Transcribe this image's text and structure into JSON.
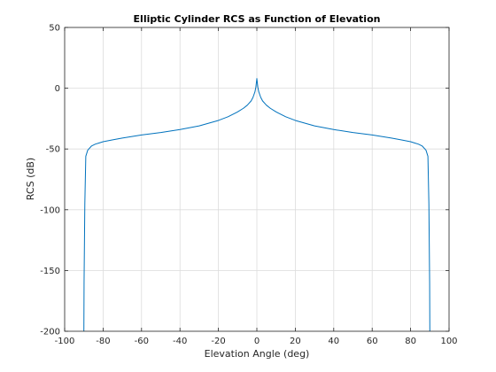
{
  "chart_data": {
    "type": "line",
    "title": "Elliptic Cylinder RCS as Function of Elevation",
    "xlabel": "Elevation Angle (deg)",
    "ylabel": "RCS (dB)",
    "xlim": [
      -100,
      100
    ],
    "ylim": [
      -200,
      50
    ],
    "xticks": [
      -100,
      -80,
      -60,
      -40,
      -20,
      0,
      20,
      40,
      60,
      80,
      100
    ],
    "yticks": [
      50,
      0,
      -50,
      -100,
      -150,
      -200
    ],
    "grid": true,
    "legend": "none",
    "colors": {
      "line": "#0072BD",
      "grid": "#dcdcdc",
      "axes": "#262626"
    },
    "series": [
      {
        "x": [
          -90,
          -89.9,
          -89.5,
          -89,
          -88,
          -86,
          -84,
          -82,
          -80,
          -75,
          -70,
          -60,
          -50,
          -40,
          -30,
          -20,
          -15,
          -10,
          -7,
          -5,
          -3,
          -2,
          -1,
          -0.5,
          0,
          0.5,
          1,
          2,
          3,
          5,
          7,
          10,
          15,
          20,
          30,
          40,
          50,
          60,
          70,
          75,
          80,
          82,
          84,
          86,
          88,
          89,
          89.5,
          89.9,
          90
        ],
        "y": [
          -200,
          -160,
          -95,
          -56,
          -51,
          -47.5,
          -46,
          -45,
          -44,
          -42.5,
          -41,
          -38.5,
          -36.5,
          -34,
          -31,
          -26.5,
          -23.5,
          -19.5,
          -16.5,
          -14,
          -10.5,
          -7.5,
          -3,
          1,
          8,
          1,
          -3,
          -7.5,
          -10.5,
          -14,
          -16.5,
          -19.5,
          -23.5,
          -26.5,
          -31,
          -34,
          -36.5,
          -38.5,
          -41,
          -42.5,
          -44,
          -45,
          -46,
          -47.5,
          -51,
          -56,
          -95,
          -160,
          -200
        ]
      }
    ]
  }
}
